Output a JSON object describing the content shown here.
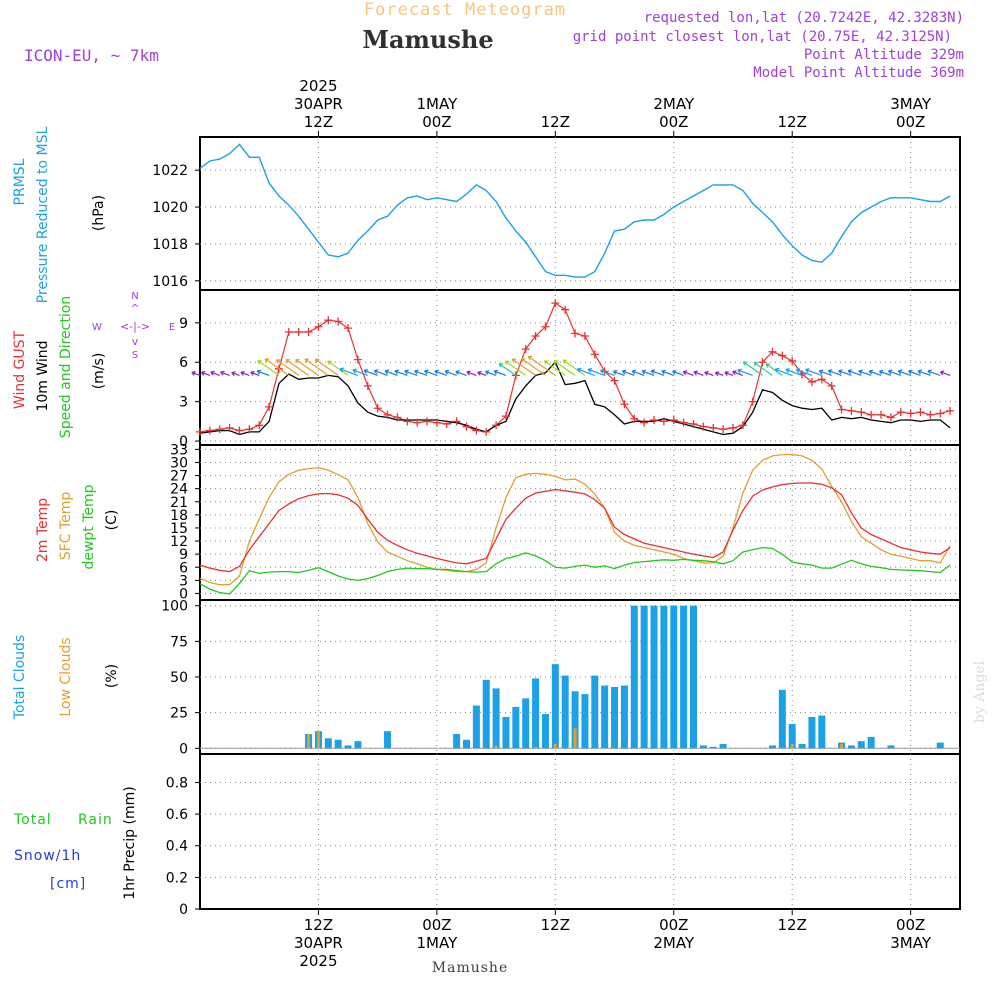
{
  "header": {
    "overline": "Forecast Meteogram",
    "title": "Mamushe",
    "model": "ICON-EU, ~ 7km",
    "info": [
      "requested lon,lat (20.7242E, 42.3283N)",
      "grid point closest lon,lat (20.75E, 42.3125N)",
      "Point Altitude 329m",
      "Model Point Altitude 369m"
    ],
    "footer": "Mamushe",
    "credit": "by Angel"
  },
  "time_axis": {
    "ticks": [
      {
        "hours": 12,
        "top": [
          "2025",
          "30APR",
          "12Z"
        ],
        "bottom": [
          "12Z",
          "30APR",
          "2025"
        ]
      },
      {
        "hours": 24,
        "top": [
          "1MAY",
          "00Z"
        ],
        "bottom": [
          "00Z",
          "1MAY"
        ]
      },
      {
        "hours": 36,
        "top": [
          "12Z"
        ],
        "bottom": [
          "12Z"
        ]
      },
      {
        "hours": 48,
        "top": [
          "2MAY",
          "00Z"
        ],
        "bottom": [
          "00Z",
          "2MAY"
        ]
      },
      {
        "hours": 60,
        "top": [
          "12Z"
        ],
        "bottom": [
          "12Z"
        ]
      },
      {
        "hours": 72,
        "top": [
          "3MAY",
          "00Z"
        ],
        "bottom": [
          "00Z",
          "3MAY"
        ]
      }
    ]
  },
  "panel_labels": {
    "pressure": {
      "a": "PRMSL",
      "b": "Pressure Reduced to MSL",
      "unit": "(hPa)"
    },
    "wind": {
      "a": "Wind GUST",
      "b": "10m Wind",
      "c": "Speed and Direction",
      "unit": "(m/s)",
      "compass": {
        "n": "N",
        "s": "S",
        "w": "W",
        "e": "E"
      }
    },
    "temp": {
      "a": "2m Temp",
      "b": "SFC Temp",
      "c": "dewpt Temp",
      "unit": "(C)"
    },
    "clouds": {
      "a": "Total Clouds",
      "b": "Low Clouds",
      "unit": "(%)"
    },
    "precip": {
      "a": "Total",
      "b": "Rain",
      "c": "Snow/1h",
      "d": "[cm]",
      "unit": "1hr Precip (mm)"
    }
  },
  "colors": {
    "pressure": "#1ca0e6",
    "gust": "#e83232",
    "wind": "#000000",
    "temp2m": "#e83232",
    "sfc": "#e0a030",
    "dewpt": "#20c820",
    "total_clouds": "#1ca0e6",
    "low_clouds": "#e0a030",
    "rain": "#20c820",
    "snow": "#2040e0",
    "label_purple": "#a040d8",
    "title_orange": "#f0c880"
  },
  "chart_data": [
    {
      "type": "line",
      "panel": "pressure",
      "ylim": [
        1015.5,
        1023.8
      ],
      "yticks": [
        1016,
        1018,
        1020,
        1022
      ],
      "x_hours": [
        0,
        1,
        2,
        3,
        4,
        5,
        6,
        7,
        8,
        9,
        10,
        11,
        12,
        13,
        14,
        15,
        16,
        17,
        18,
        19,
        20,
        21,
        22,
        23,
        24,
        25,
        26,
        27,
        28,
        29,
        30,
        31,
        32,
        33,
        34,
        35,
        36,
        37,
        38,
        39,
        40,
        41,
        42,
        43,
        44,
        45,
        46,
        47,
        48,
        49,
        50,
        51,
        52,
        53,
        54,
        55,
        56,
        57,
        58,
        59,
        60,
        61,
        62,
        63,
        64,
        65,
        66,
        67,
        68,
        69,
        70,
        71,
        72,
        73,
        74,
        75,
        76
      ],
      "series": [
        {
          "name": "PRMSL",
          "values": [
            1022.1,
            1022.5,
            1022.6,
            1022.9,
            1023.4,
            1022.7,
            1022.7,
            1021.3,
            1020.6,
            1020.1,
            1019.5,
            1018.8,
            1018.1,
            1017.4,
            1017.3,
            1017.5,
            1018.2,
            1018.7,
            1019.3,
            1019.5,
            1020.1,
            1020.5,
            1020.6,
            1020.4,
            1020.5,
            1020.4,
            1020.3,
            1020.7,
            1021.2,
            1020.9,
            1020.3,
            1019.4,
            1018.7,
            1018.1,
            1017.3,
            1016.5,
            1016.3,
            1016.3,
            1016.2,
            1016.2,
            1016.5,
            1017.5,
            1018.7,
            1018.8,
            1019.2,
            1019.3,
            1019.3,
            1019.6,
            1020.0,
            1020.3,
            1020.6,
            1020.9,
            1021.2,
            1021.2,
            1021.2,
            1020.9,
            1020.2,
            1019.7,
            1019.2,
            1018.5,
            1017.9,
            1017.4,
            1017.1,
            1017.0,
            1017.5,
            1018.4,
            1019.2,
            1019.7,
            1020.0,
            1020.3,
            1020.5,
            1020.5,
            1020.5,
            1020.4,
            1020.3,
            1020.3,
            1020.6
          ]
        }
      ]
    },
    {
      "type": "line",
      "panel": "wind",
      "ylim": [
        -0.3,
        11.5
      ],
      "yticks": [
        0,
        3,
        6,
        9
      ],
      "x_hours": [
        0,
        1,
        2,
        3,
        4,
        5,
        6,
        7,
        8,
        9,
        10,
        11,
        12,
        13,
        14,
        15,
        16,
        17,
        18,
        19,
        20,
        21,
        22,
        23,
        24,
        25,
        26,
        27,
        28,
        29,
        30,
        31,
        32,
        33,
        34,
        35,
        36,
        37,
        38,
        39,
        40,
        41,
        42,
        43,
        44,
        45,
        46,
        47,
        48,
        49,
        50,
        51,
        52,
        53,
        54,
        55,
        56,
        57,
        58,
        59,
        60,
        61,
        62,
        63,
        64,
        65,
        66,
        67,
        68,
        69,
        70,
        71,
        72,
        73,
        74,
        75,
        76
      ],
      "series": [
        {
          "name": "Wind GUST",
          "values": [
            0.7,
            0.8,
            0.9,
            1.0,
            0.8,
            0.9,
            1.2,
            2.6,
            5.5,
            8.3,
            8.3,
            8.3,
            8.7,
            9.2,
            9.1,
            8.6,
            6.2,
            4.2,
            2.5,
            2.0,
            1.8,
            1.5,
            1.4,
            1.5,
            1.4,
            1.3,
            1.5,
            1.1,
            0.8,
            0.7,
            1.2,
            1.9,
            5.0,
            7.0,
            8.0,
            8.7,
            10.5,
            10.0,
            8.2,
            8.0,
            6.6,
            5.3,
            4.6,
            2.8,
            1.7,
            1.4,
            1.6,
            1.5,
            1.6,
            1.4,
            1.3,
            1.1,
            1.0,
            0.9,
            1.0,
            1.2,
            3.0,
            6.0,
            6.8,
            6.5,
            6.1,
            5.1,
            4.5,
            4.7,
            4.2,
            2.4,
            2.3,
            2.2,
            2.0,
            2.0,
            1.8,
            2.2,
            2.1,
            2.2,
            2.0,
            2.1,
            2.3
          ]
        },
        {
          "name": "10m Wind",
          "values": [
            0.6,
            0.7,
            0.8,
            0.8,
            0.5,
            0.7,
            0.7,
            1.5,
            4.4,
            5.1,
            4.7,
            4.8,
            4.8,
            5.0,
            4.9,
            4.2,
            2.9,
            2.2,
            1.9,
            1.8,
            1.6,
            1.6,
            1.6,
            1.6,
            1.6,
            1.5,
            1.4,
            1.2,
            0.9,
            0.7,
            1.2,
            1.5,
            3.2,
            4.2,
            5.0,
            5.2,
            6.0,
            4.3,
            4.4,
            4.6,
            2.8,
            2.6,
            2.0,
            1.3,
            1.5,
            1.5,
            1.5,
            1.7,
            1.5,
            1.3,
            1.1,
            0.9,
            0.7,
            0.5,
            0.6,
            1.1,
            2.2,
            3.9,
            3.7,
            3.1,
            2.7,
            2.5,
            2.4,
            2.5,
            1.6,
            1.8,
            1.7,
            1.8,
            1.6,
            1.5,
            1.4,
            1.6,
            1.6,
            1.5,
            1.6,
            1.6,
            1.0
          ]
        }
      ]
    },
    {
      "type": "line",
      "panel": "temp",
      "ylim": [
        -1.5,
        34
      ],
      "yticks": [
        0,
        3,
        6,
        9,
        12,
        15,
        18,
        21,
        24,
        27,
        30,
        33
      ],
      "x_hours": [
        0,
        1,
        2,
        3,
        4,
        5,
        6,
        7,
        8,
        9,
        10,
        11,
        12,
        13,
        14,
        15,
        16,
        17,
        18,
        19,
        20,
        21,
        22,
        23,
        24,
        25,
        26,
        27,
        28,
        29,
        30,
        31,
        32,
        33,
        34,
        35,
        36,
        37,
        38,
        39,
        40,
        41,
        42,
        43,
        44,
        45,
        46,
        47,
        48,
        49,
        50,
        51,
        52,
        53,
        54,
        55,
        56,
        57,
        58,
        59,
        60,
        61,
        62,
        63,
        64,
        65,
        66,
        67,
        68,
        69,
        70,
        71,
        72,
        73,
        74,
        75,
        76
      ],
      "series": [
        {
          "name": "2m Temp",
          "values": [
            6.5,
            5.8,
            5.3,
            5.0,
            6.2,
            10.0,
            13.0,
            16.0,
            19.0,
            20.5,
            21.7,
            22.4,
            22.8,
            22.9,
            22.6,
            21.8,
            20.2,
            17.0,
            14.0,
            12.2,
            11.0,
            10.0,
            9.2,
            8.6,
            8.0,
            7.5,
            7.0,
            6.8,
            7.4,
            8.0,
            12.5,
            17.0,
            19.5,
            21.8,
            23.0,
            23.4,
            23.8,
            23.5,
            23.2,
            22.8,
            21.5,
            19.5,
            15.2,
            13.5,
            12.5,
            11.5,
            11.0,
            10.5,
            10.0,
            9.5,
            9.0,
            8.6,
            8.2,
            9.5,
            14.5,
            19.0,
            22.3,
            23.7,
            24.4,
            24.9,
            25.2,
            25.3,
            25.3,
            25.0,
            24.2,
            22.6,
            18.5,
            15.0,
            13.5,
            12.5,
            11.5,
            10.5,
            10.0,
            9.5,
            9.2,
            9.0,
            10.5
          ]
        },
        {
          "name": "SFC Temp",
          "values": [
            3.5,
            2.5,
            2.0,
            2.0,
            4.0,
            12.0,
            17.0,
            22.0,
            25.6,
            27.3,
            28.2,
            28.6,
            28.8,
            28.2,
            27.2,
            26.0,
            22.0,
            16.0,
            11.8,
            9.5,
            8.5,
            7.5,
            6.8,
            6.0,
            5.5,
            5.3,
            5.0,
            5.0,
            5.5,
            7.0,
            15.0,
            22.0,
            26.5,
            27.3,
            27.5,
            27.3,
            26.8,
            26.0,
            26.2,
            25.0,
            22.8,
            19.5,
            14.0,
            12.0,
            11.0,
            10.5,
            10.0,
            9.5,
            9.0,
            8.0,
            7.5,
            7.0,
            7.0,
            8.5,
            15.0,
            23.0,
            28.2,
            30.5,
            31.5,
            31.8,
            31.8,
            31.5,
            30.5,
            28.5,
            24.5,
            21.0,
            16.5,
            13.0,
            11.5,
            10.0,
            9.0,
            8.5,
            8.0,
            7.5,
            7.5,
            7.0,
            11.0
          ]
        },
        {
          "name": "dewpt Temp",
          "values": [
            2.2,
            1.0,
            0.2,
            -0.1,
            2.3,
            5.2,
            4.6,
            4.9,
            5.0,
            5.0,
            4.8,
            5.3,
            5.9,
            5.0,
            4.0,
            3.3,
            3.0,
            3.4,
            4.1,
            5.0,
            5.5,
            5.8,
            5.7,
            5.7,
            5.5,
            5.5,
            5.2,
            5.0,
            4.9,
            5.0,
            6.8,
            8.0,
            8.5,
            9.3,
            8.6,
            7.5,
            6.0,
            5.8,
            6.2,
            6.5,
            6.0,
            6.3,
            5.7,
            6.5,
            7.1,
            7.3,
            7.5,
            7.7,
            7.6,
            7.8,
            7.6,
            7.5,
            7.3,
            6.8,
            7.5,
            9.5,
            10.0,
            10.5,
            10.3,
            9.0,
            7.2,
            6.8,
            6.5,
            5.8,
            5.8,
            6.7,
            7.6,
            6.8,
            6.2,
            5.9,
            5.5,
            5.4,
            5.3,
            5.2,
            5.0,
            4.8,
            6.5
          ]
        }
      ]
    },
    {
      "type": "bar",
      "panel": "clouds",
      "ylim": [
        -4,
        104
      ],
      "yticks": [
        0,
        25,
        50,
        75,
        100
      ],
      "x_hours": [
        0,
        1,
        2,
        3,
        4,
        5,
        6,
        7,
        8,
        9,
        10,
        11,
        12,
        13,
        14,
        15,
        16,
        17,
        18,
        19,
        20,
        21,
        22,
        23,
        24,
        25,
        26,
        27,
        28,
        29,
        30,
        31,
        32,
        33,
        34,
        35,
        36,
        37,
        38,
        39,
        40,
        41,
        42,
        43,
        44,
        45,
        46,
        47,
        48,
        49,
        50,
        51,
        52,
        53,
        54,
        55,
        56,
        57,
        58,
        59,
        60,
        61,
        62,
        63,
        64,
        65,
        66,
        67,
        68,
        69,
        70,
        71,
        72,
        73,
        74,
        75,
        76
      ],
      "series": [
        {
          "name": "Total Clouds",
          "values": [
            0,
            0,
            0,
            0,
            0,
            0,
            0,
            0,
            0,
            0,
            0,
            10,
            12,
            7,
            6,
            2,
            5,
            0,
            0,
            12,
            0,
            0,
            0,
            0,
            0,
            0,
            10,
            6,
            30,
            48,
            42,
            22,
            29,
            35,
            49,
            24,
            59,
            51,
            40,
            38,
            51,
            44,
            43,
            44,
            100,
            100,
            100,
            100,
            100,
            100,
            100,
            2,
            1,
            3,
            0,
            0,
            0,
            0,
            2,
            41,
            17,
            3,
            22,
            23,
            0,
            4,
            2,
            5,
            8,
            0,
            2,
            0,
            0,
            0,
            0,
            4,
            0
          ]
        },
        {
          "name": "Low Clouds",
          "values": [
            0,
            0,
            0,
            0,
            0,
            0,
            0,
            0,
            0,
            0,
            0,
            10,
            12,
            0,
            0,
            0,
            0,
            0,
            0,
            0,
            0,
            0,
            0,
            0,
            0,
            0,
            0,
            0,
            0,
            0,
            2,
            0,
            0,
            0,
            1,
            0,
            3,
            0,
            14,
            0,
            0,
            0,
            0,
            0,
            0,
            0,
            0,
            0,
            0,
            0,
            0,
            0,
            0,
            0,
            0,
            0,
            0,
            0,
            0,
            0,
            3,
            0,
            0,
            0,
            0,
            3,
            0,
            0,
            0,
            0,
            0,
            0,
            0,
            0,
            0,
            0,
            0
          ]
        }
      ]
    },
    {
      "type": "bar",
      "panel": "precip",
      "ylim": [
        0,
        0.98
      ],
      "yticks": [
        0,
        0.2,
        0.4,
        0.6,
        0.8
      ],
      "x_hours": [],
      "series": [
        {
          "name": "Total Rain",
          "values": []
        },
        {
          "name": "Snow/1h",
          "values": []
        }
      ]
    }
  ]
}
